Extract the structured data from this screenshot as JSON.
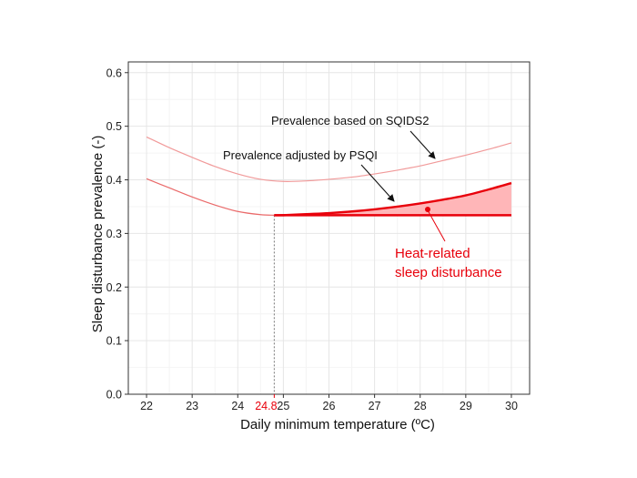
{
  "chart_data": {
    "type": "line",
    "xlabel": "Daily minimum temperature (ºC)",
    "ylabel": "Sleep disturbance prevalence (-)",
    "xlim": [
      21.6,
      30.4
    ],
    "ylim": [
      0,
      0.62
    ],
    "x_ticks": [
      "22",
      "23",
      "24",
      "25",
      "26",
      "27",
      "28",
      "29",
      "30"
    ],
    "y_ticks": [
      "0.0",
      "0.1",
      "0.2",
      "0.3",
      "0.4",
      "0.5",
      "0.6"
    ],
    "grid": true,
    "threshold": {
      "x": 24.8,
      "label": "24.8",
      "y": 0.334
    },
    "series": [
      {
        "name": "Prevalence based on SQIDS2",
        "color": "#f19a9a",
        "x": [
          22,
          22.5,
          23,
          23.5,
          24,
          24.5,
          25,
          25.5,
          26,
          26.5,
          27,
          27.5,
          28,
          28.5,
          29,
          29.5,
          30
        ],
        "y": [
          0.48,
          0.46,
          0.442,
          0.425,
          0.411,
          0.401,
          0.397,
          0.398,
          0.401,
          0.405,
          0.411,
          0.418,
          0.426,
          0.436,
          0.446,
          0.457,
          0.469
        ]
      },
      {
        "name": "Prevalence adjusted by PSQI",
        "color": "#ea6a6a",
        "x": [
          22,
          22.5,
          23,
          23.5,
          24,
          24.5,
          24.8
        ],
        "y": [
          0.402,
          0.385,
          0.368,
          0.353,
          0.341,
          0.335,
          0.334
        ]
      },
      {
        "name": "Prevalence adjusted by PSQI (above threshold)",
        "color": "#e8000b",
        "x": [
          24.8,
          25,
          25.5,
          26,
          26.5,
          27,
          27.5,
          28,
          28.5,
          29,
          29.5,
          30
        ],
        "y": [
          0.334,
          0.334,
          0.336,
          0.338,
          0.341,
          0.345,
          0.35,
          0.356,
          0.363,
          0.371,
          0.382,
          0.394
        ]
      }
    ],
    "annotations": [
      {
        "text": "Prevalence based on SQIDS2"
      },
      {
        "text": "Prevalence adjusted by PSQI"
      }
    ],
    "area_label": [
      "Heat-related",
      "sleep disturbance"
    ],
    "area_color": "#ffb6b8",
    "accent": "#e8000b"
  }
}
